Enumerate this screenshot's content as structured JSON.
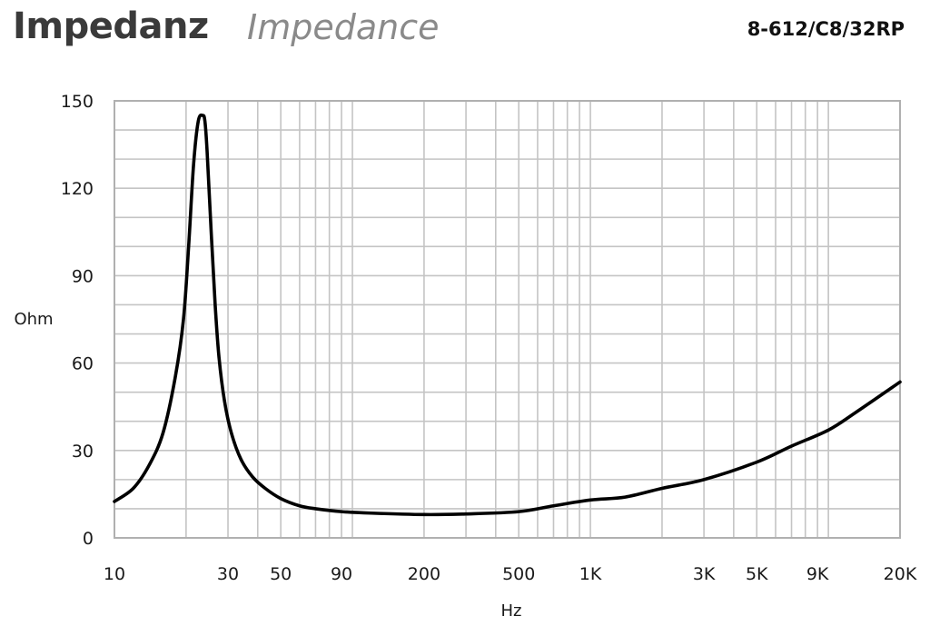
{
  "header": {
    "title": "Impedanz",
    "subtitle": "Impedance",
    "model": "8-612/C8/32RP"
  },
  "colors": {
    "curve": "#000000",
    "grid": "#c4c4c4",
    "frame": "#b0b0b0"
  },
  "chart_data": {
    "type": "line",
    "xscale": "log",
    "xlim": [
      10,
      20000
    ],
    "ylim": [
      0,
      150
    ],
    "xlabel": "Hz",
    "ylabel": "Ohm",
    "xtick_values": [
      10,
      30,
      50,
      90,
      200,
      500,
      1000,
      3000,
      5000,
      9000,
      20000
    ],
    "xtick_labels": [
      "10",
      "30",
      "50",
      "90",
      "200",
      "500",
      "1K",
      "3K",
      "5K",
      "9K",
      "20K"
    ],
    "ytick_values": [
      0,
      30,
      60,
      90,
      120,
      150
    ],
    "ytick_labels": [
      "0",
      "30",
      "60",
      "90",
      "120",
      "150"
    ],
    "grid": true,
    "series": [
      {
        "x": [
          10,
          12,
          14,
          16,
          18,
          19.5,
          20.5,
          21.5,
          22.5,
          23.5,
          24,
          24.5,
          25.5,
          26.5,
          27.5,
          29,
          31,
          34,
          38,
          43,
          50,
          60,
          70,
          90,
          120,
          200,
          300,
          500,
          700,
          1000,
          1400,
          2000,
          3000,
          5000,
          7000,
          10000,
          13000,
          20000
        ],
        "y": [
          12.5,
          17,
          25,
          36,
          55,
          75,
          100,
          128,
          143,
          145,
          143,
          133,
          105,
          80,
          62,
          47,
          36,
          27,
          21,
          17,
          13.5,
          11,
          10,
          9,
          8.5,
          8,
          8.2,
          9,
          11,
          13,
          14,
          17,
          20,
          26,
          31.5,
          37,
          43,
          53.5
        ]
      }
    ]
  }
}
